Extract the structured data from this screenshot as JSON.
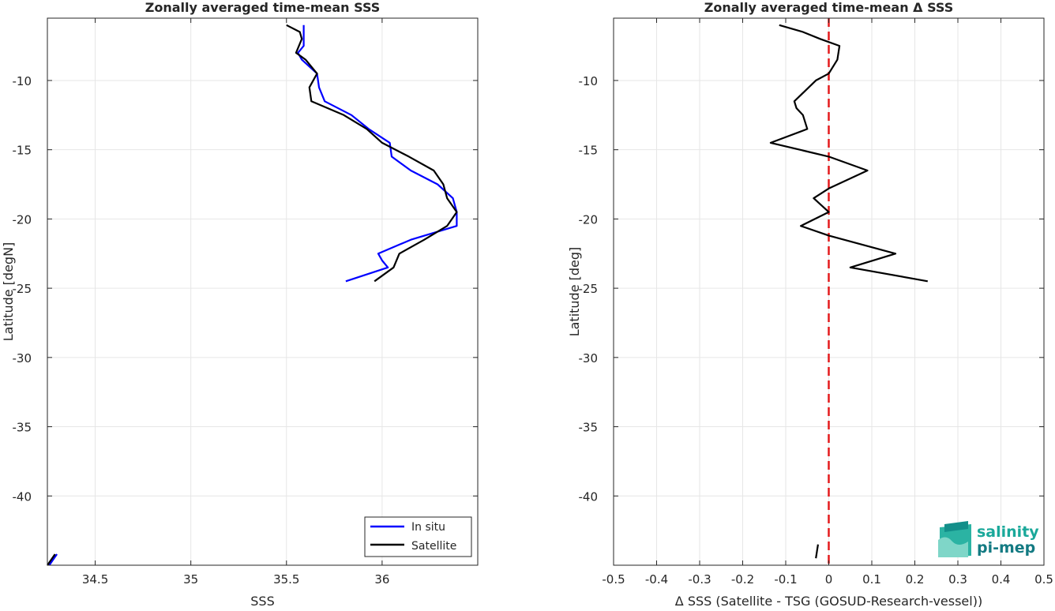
{
  "chart_data": [
    {
      "type": "line",
      "title": "Zonally averaged time-mean SSS",
      "xlabel": "SSS",
      "ylabel": "Latitude [degN]",
      "xlim": [
        34.25,
        36.5
      ],
      "ylim": [
        -45,
        -5.5
      ],
      "xticks": [
        34.5,
        35,
        35.5,
        36
      ],
      "xtick_labels": [
        "34.5",
        "35",
        "35.5",
        "36"
      ],
      "yticks": [
        -40,
        -35,
        -30,
        -25,
        -20,
        -15,
        -10
      ],
      "ytick_labels": [
        "-40",
        "-35",
        "-30",
        "-25",
        "-20",
        "-15",
        "-10"
      ],
      "grid": true,
      "legend": "bottom-right",
      "series": [
        {
          "name": "In situ",
          "color": "#0000ff",
          "points": [
            [
              35.59,
              -6
            ],
            [
              35.59,
              -6.5
            ],
            [
              35.59,
              -7
            ],
            [
              35.59,
              -7.5
            ],
            [
              35.56,
              -8
            ],
            [
              35.58,
              -8.5
            ],
            [
              35.66,
              -9.5
            ],
            [
              35.67,
              -10.5
            ],
            [
              35.7,
              -11.5
            ],
            [
              35.84,
              -12.5
            ],
            [
              35.93,
              -13.5
            ],
            [
              36.04,
              -14.5
            ],
            [
              36.05,
              -15.5
            ],
            [
              36.15,
              -16.5
            ],
            [
              36.29,
              -17.5
            ],
            [
              36.37,
              -18.5
            ],
            [
              36.39,
              -19.5
            ],
            [
              36.39,
              -20.5
            ],
            [
              36.15,
              -21.5
            ],
            [
              35.98,
              -22.5
            ],
            [
              36.0,
              -23
            ],
            [
              36.03,
              -23.5
            ],
            [
              35.81,
              -24.5
            ],
            [
              34.3,
              -44.2
            ],
            [
              34.26,
              -45
            ]
          ]
        },
        {
          "name": "Satellite",
          "color": "#000000",
          "points": [
            [
              35.5,
              -6
            ],
            [
              35.57,
              -6.5
            ],
            [
              35.58,
              -7
            ],
            [
              35.55,
              -8
            ],
            [
              35.6,
              -8.5
            ],
            [
              35.66,
              -9.5
            ],
            [
              35.62,
              -10.5
            ],
            [
              35.63,
              -11.5
            ],
            [
              35.8,
              -12.5
            ],
            [
              35.92,
              -13.5
            ],
            [
              36.0,
              -14.5
            ],
            [
              36.14,
              -15.5
            ],
            [
              36.27,
              -16.5
            ],
            [
              36.32,
              -17.5
            ],
            [
              36.34,
              -18.5
            ],
            [
              36.39,
              -19.5
            ],
            [
              36.34,
              -20.5
            ],
            [
              36.22,
              -21.5
            ],
            [
              36.09,
              -22.5
            ],
            [
              36.06,
              -23.5
            ],
            [
              35.96,
              -24.5
            ],
            [
              34.29,
              -44.2
            ],
            [
              34.25,
              -45
            ]
          ]
        }
      ]
    },
    {
      "type": "line",
      "title": "Zonally averaged time-mean Δ SSS",
      "xlabel": "Δ SSS (Satellite - TSG (GOSUD-Research-vessel))",
      "ylabel": "Latitude [deg]",
      "xlim": [
        -0.5,
        0.5
      ],
      "ylim": [
        -45,
        -5.5
      ],
      "xticks": [
        -0.5,
        -0.4,
        -0.3,
        -0.2,
        -0.1,
        0,
        0.1,
        0.2,
        0.3,
        0.4,
        0.5
      ],
      "xtick_labels": [
        "-0.5",
        "-0.4",
        "-0.3",
        "-0.2",
        "-0.1",
        "0",
        "0.1",
        "0.2",
        "0.3",
        "0.4",
        "0.5"
      ],
      "yticks": [
        -40,
        -35,
        -30,
        -25,
        -20,
        -15,
        -10
      ],
      "ytick_labels": [
        "-40",
        "-35",
        "-30",
        "-25",
        "-20",
        "-15",
        "-10"
      ],
      "grid": true,
      "reference_line": {
        "x": 0,
        "color": "#e41a1c",
        "style": "dashed"
      },
      "series": [
        {
          "color": "#000000",
          "points": [
            [
              -0.115,
              -6
            ],
            [
              -0.06,
              -6.5
            ],
            [
              -0.02,
              -7
            ],
            [
              0.025,
              -7.5
            ],
            [
              0.02,
              -8.5
            ],
            [
              0.0,
              -9.5
            ],
            [
              -0.03,
              -10
            ],
            [
              -0.08,
              -11.5
            ],
            [
              -0.075,
              -12
            ],
            [
              -0.06,
              -12.5
            ],
            [
              -0.05,
              -13.5
            ],
            [
              -0.135,
              -14.5
            ],
            [
              0.0,
              -15.5
            ],
            [
              0.09,
              -16.5
            ],
            [
              0.0,
              -17.8
            ],
            [
              -0.035,
              -18.5
            ],
            [
              0.0,
              -19.5
            ],
            [
              -0.065,
              -20.5
            ],
            [
              0.0,
              -21.2
            ],
            [
              0.155,
              -22.5
            ],
            [
              0.05,
              -23.5
            ],
            [
              0.23,
              -24.5
            ]
          ]
        },
        {
          "color": "#000000",
          "points": [
            [
              -0.03,
              -44.5
            ],
            [
              -0.025,
              -43.5
            ]
          ]
        }
      ]
    }
  ],
  "legend_items": [
    "In situ",
    "Satellite"
  ],
  "logo": {
    "line1": "salinity",
    "line2": "pi-mep"
  }
}
